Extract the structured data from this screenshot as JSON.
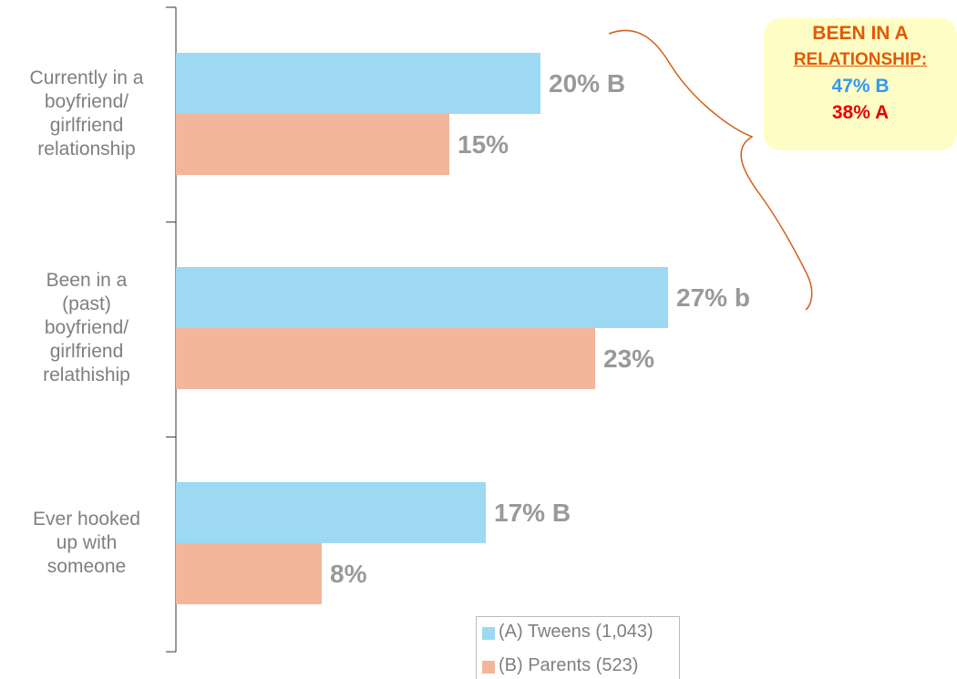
{
  "chart_data": {
    "type": "bar",
    "orientation": "horizontal",
    "categories": [
      "Currently in a\nboyfriend/\ngirlfriend\nrelationship",
      "Been in a\n(past)\nboyfriend/\ngirlfriend\nrelathiship",
      "Ever hooked\nup with\nsomeone"
    ],
    "series": [
      {
        "name": "(A) Tweens (1,043)",
        "color": "#9dd9f3",
        "values": [
          20,
          27,
          17
        ],
        "value_labels": [
          "20% B",
          "27% b",
          "17% B"
        ]
      },
      {
        "name": "(B) Parents (523)",
        "color": "#f4b69a",
        "values": [
          15,
          23,
          8
        ],
        "value_labels": [
          "15%",
          "23%",
          "8%"
        ]
      }
    ],
    "annotation": {
      "title": "BEEN IN A",
      "subtitle": "RELATIONSHIP:",
      "lines": [
        "47% B",
        "38% A"
      ],
      "colors": [
        "#e05a00",
        "#3399ee",
        "#e60000"
      ]
    }
  }
}
